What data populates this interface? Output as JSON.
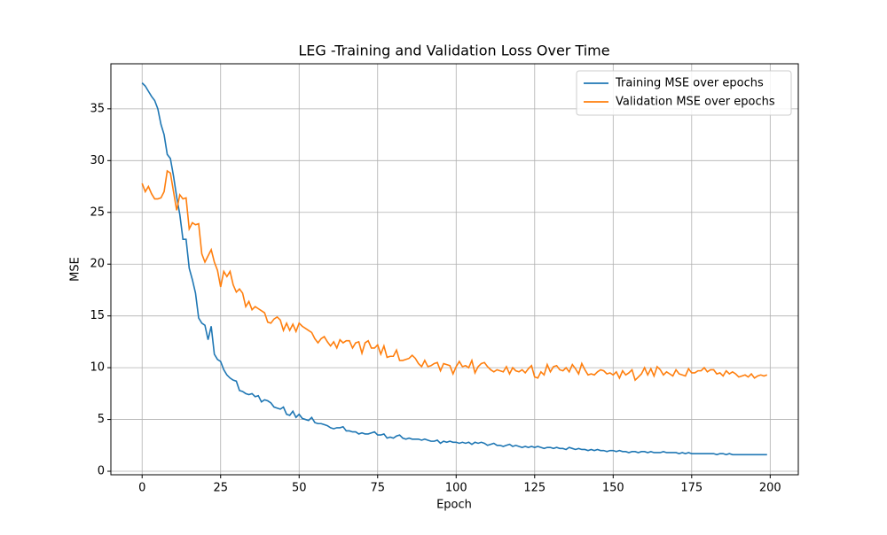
{
  "chart_data": {
    "type": "line",
    "title": "LEG -Training and Validation Loss Over Time",
    "xlabel": "Epoch",
    "ylabel": "MSE",
    "x": [
      0,
      1,
      2,
      3,
      4,
      5,
      6,
      7,
      8,
      9,
      10,
      11,
      12,
      13,
      14,
      15,
      16,
      17,
      18,
      19,
      20,
      21,
      22,
      23,
      24,
      25,
      26,
      27,
      28,
      29,
      30,
      31,
      32,
      33,
      34,
      35,
      36,
      37,
      38,
      39,
      40,
      41,
      42,
      43,
      44,
      45,
      46,
      47,
      48,
      49,
      50,
      51,
      52,
      53,
      54,
      55,
      56,
      57,
      58,
      59,
      60,
      61,
      62,
      63,
      64,
      65,
      66,
      67,
      68,
      69,
      70,
      71,
      72,
      73,
      74,
      75,
      76,
      77,
      78,
      79,
      80,
      81,
      82,
      83,
      84,
      85,
      86,
      87,
      88,
      89,
      90,
      91,
      92,
      93,
      94,
      95,
      96,
      97,
      98,
      99,
      100,
      101,
      102,
      103,
      104,
      105,
      106,
      107,
      108,
      109,
      110,
      111,
      112,
      113,
      114,
      115,
      116,
      117,
      118,
      119,
      120,
      121,
      122,
      123,
      124,
      125,
      126,
      127,
      128,
      129,
      130,
      131,
      132,
      133,
      134,
      135,
      136,
      137,
      138,
      139,
      140,
      141,
      142,
      143,
      144,
      145,
      146,
      147,
      148,
      149,
      150,
      151,
      152,
      153,
      154,
      155,
      156,
      157,
      158,
      159,
      160,
      161,
      162,
      163,
      164,
      165,
      166,
      167,
      168,
      169,
      170,
      171,
      172,
      173,
      174,
      175,
      176,
      177,
      178,
      179,
      180,
      181,
      182,
      183,
      184,
      185,
      186,
      187,
      188,
      189,
      190,
      191,
      192,
      193,
      194,
      195,
      196,
      197,
      198,
      199
    ],
    "series": [
      {
        "name": "Training MSE over epochs",
        "color": "#1f77b4",
        "values": [
          37.5,
          37.2,
          36.7,
          36.2,
          35.8,
          35.0,
          33.5,
          32.5,
          30.6,
          30.2,
          28.5,
          26.5,
          24.8,
          22.4,
          22.4,
          19.6,
          18.5,
          17.2,
          14.8,
          14.3,
          14.1,
          12.7,
          14.0,
          11.3,
          10.8,
          10.6,
          9.8,
          9.3,
          9.0,
          8.8,
          8.7,
          7.8,
          7.7,
          7.5,
          7.4,
          7.5,
          7.2,
          7.3,
          6.7,
          6.9,
          6.8,
          6.6,
          6.2,
          6.1,
          6.0,
          6.2,
          5.5,
          5.4,
          5.8,
          5.2,
          5.5,
          5.1,
          5.0,
          4.9,
          5.2,
          4.7,
          4.6,
          4.6,
          4.5,
          4.4,
          4.2,
          4.1,
          4.2,
          4.2,
          4.3,
          3.9,
          3.9,
          3.8,
          3.8,
          3.6,
          3.7,
          3.6,
          3.6,
          3.7,
          3.8,
          3.5,
          3.5,
          3.6,
          3.2,
          3.3,
          3.2,
          3.4,
          3.5,
          3.2,
          3.1,
          3.2,
          3.1,
          3.1,
          3.1,
          3.0,
          3.1,
          3.0,
          2.9,
          2.9,
          3.0,
          2.7,
          2.9,
          2.8,
          2.9,
          2.8,
          2.8,
          2.7,
          2.8,
          2.7,
          2.8,
          2.6,
          2.8,
          2.7,
          2.8,
          2.7,
          2.5,
          2.6,
          2.7,
          2.5,
          2.5,
          2.4,
          2.5,
          2.6,
          2.4,
          2.5,
          2.4,
          2.3,
          2.4,
          2.3,
          2.4,
          2.3,
          2.4,
          2.3,
          2.2,
          2.3,
          2.3,
          2.2,
          2.3,
          2.2,
          2.2,
          2.1,
          2.3,
          2.2,
          2.1,
          2.2,
          2.1,
          2.1,
          2.0,
          2.1,
          2.0,
          2.1,
          2.0,
          2.0,
          1.9,
          2.0,
          2.0,
          1.9,
          2.0,
          1.9,
          1.9,
          1.8,
          1.9,
          1.9,
          1.8,
          1.9,
          1.9,
          1.8,
          1.9,
          1.8,
          1.8,
          1.8,
          1.9,
          1.8,
          1.8,
          1.8,
          1.8,
          1.7,
          1.8,
          1.7,
          1.8,
          1.7,
          1.7,
          1.7,
          1.7,
          1.7,
          1.7,
          1.7,
          1.7,
          1.6,
          1.7,
          1.7,
          1.6,
          1.7,
          1.6,
          1.6,
          1.6,
          1.6,
          1.6,
          1.6,
          1.6,
          1.6,
          1.6,
          1.6,
          1.6,
          1.6
        ]
      },
      {
        "name": "Validation MSE over epochs",
        "color": "#ff7f0e",
        "values": [
          27.8,
          27.0,
          27.5,
          26.8,
          26.3,
          26.3,
          26.4,
          27.0,
          29.0,
          28.8,
          27.0,
          25.2,
          26.7,
          26.3,
          26.4,
          23.4,
          24.0,
          23.8,
          23.9,
          21.0,
          20.2,
          20.8,
          21.4,
          20.2,
          19.4,
          17.8,
          19.3,
          18.8,
          19.3,
          18.0,
          17.3,
          17.6,
          17.2,
          15.9,
          16.4,
          15.6,
          15.9,
          15.7,
          15.5,
          15.3,
          14.4,
          14.3,
          14.7,
          14.9,
          14.6,
          13.6,
          14.3,
          13.6,
          14.2,
          13.5,
          14.3,
          14.0,
          13.8,
          13.6,
          13.4,
          12.8,
          12.4,
          12.8,
          13.0,
          12.5,
          12.1,
          12.5,
          11.9,
          12.7,
          12.4,
          12.6,
          12.6,
          11.9,
          12.4,
          12.5,
          11.4,
          12.4,
          12.6,
          11.9,
          11.9,
          12.2,
          11.3,
          12.1,
          11.0,
          11.1,
          11.1,
          11.7,
          10.7,
          10.7,
          10.8,
          10.9,
          11.2,
          10.9,
          10.4,
          10.1,
          10.7,
          10.1,
          10.2,
          10.4,
          10.5,
          9.7,
          10.4,
          10.3,
          10.2,
          9.4,
          10.1,
          10.6,
          10.1,
          10.2,
          10.0,
          10.7,
          9.5,
          10.1,
          10.4,
          10.5,
          10.1,
          9.8,
          9.6,
          9.8,
          9.7,
          9.6,
          10.1,
          9.4,
          10.0,
          9.7,
          9.6,
          9.8,
          9.5,
          9.9,
          10.2,
          9.1,
          9.0,
          9.6,
          9.3,
          10.3,
          9.6,
          10.1,
          10.2,
          9.8,
          9.7,
          10.0,
          9.6,
          10.3,
          9.9,
          9.4,
          10.4,
          9.8,
          9.3,
          9.4,
          9.3,
          9.6,
          9.8,
          9.7,
          9.4,
          9.5,
          9.3,
          9.6,
          9.0,
          9.7,
          9.3,
          9.5,
          9.8,
          8.8,
          9.1,
          9.4,
          10.0,
          9.3,
          9.9,
          9.2,
          10.1,
          9.8,
          9.3,
          9.6,
          9.4,
          9.2,
          9.8,
          9.4,
          9.3,
          9.2,
          9.9,
          9.5,
          9.5,
          9.7,
          9.7,
          10.0,
          9.6,
          9.8,
          9.8,
          9.4,
          9.5,
          9.2,
          9.7,
          9.4,
          9.6,
          9.4,
          9.1,
          9.2,
          9.3,
          9.1,
          9.4,
          9.0,
          9.2,
          9.3,
          9.2,
          9.3
        ]
      }
    ],
    "xlim": [
      -9.95,
      208.95
    ],
    "xticks": [
      0,
      25,
      50,
      75,
      100,
      125,
      150,
      175,
      200
    ],
    "ylim": [
      -0.34,
      39.35
    ],
    "yticks": [
      0,
      5,
      10,
      15,
      20,
      25,
      30,
      35
    ],
    "grid": true,
    "legend": "upper right"
  }
}
